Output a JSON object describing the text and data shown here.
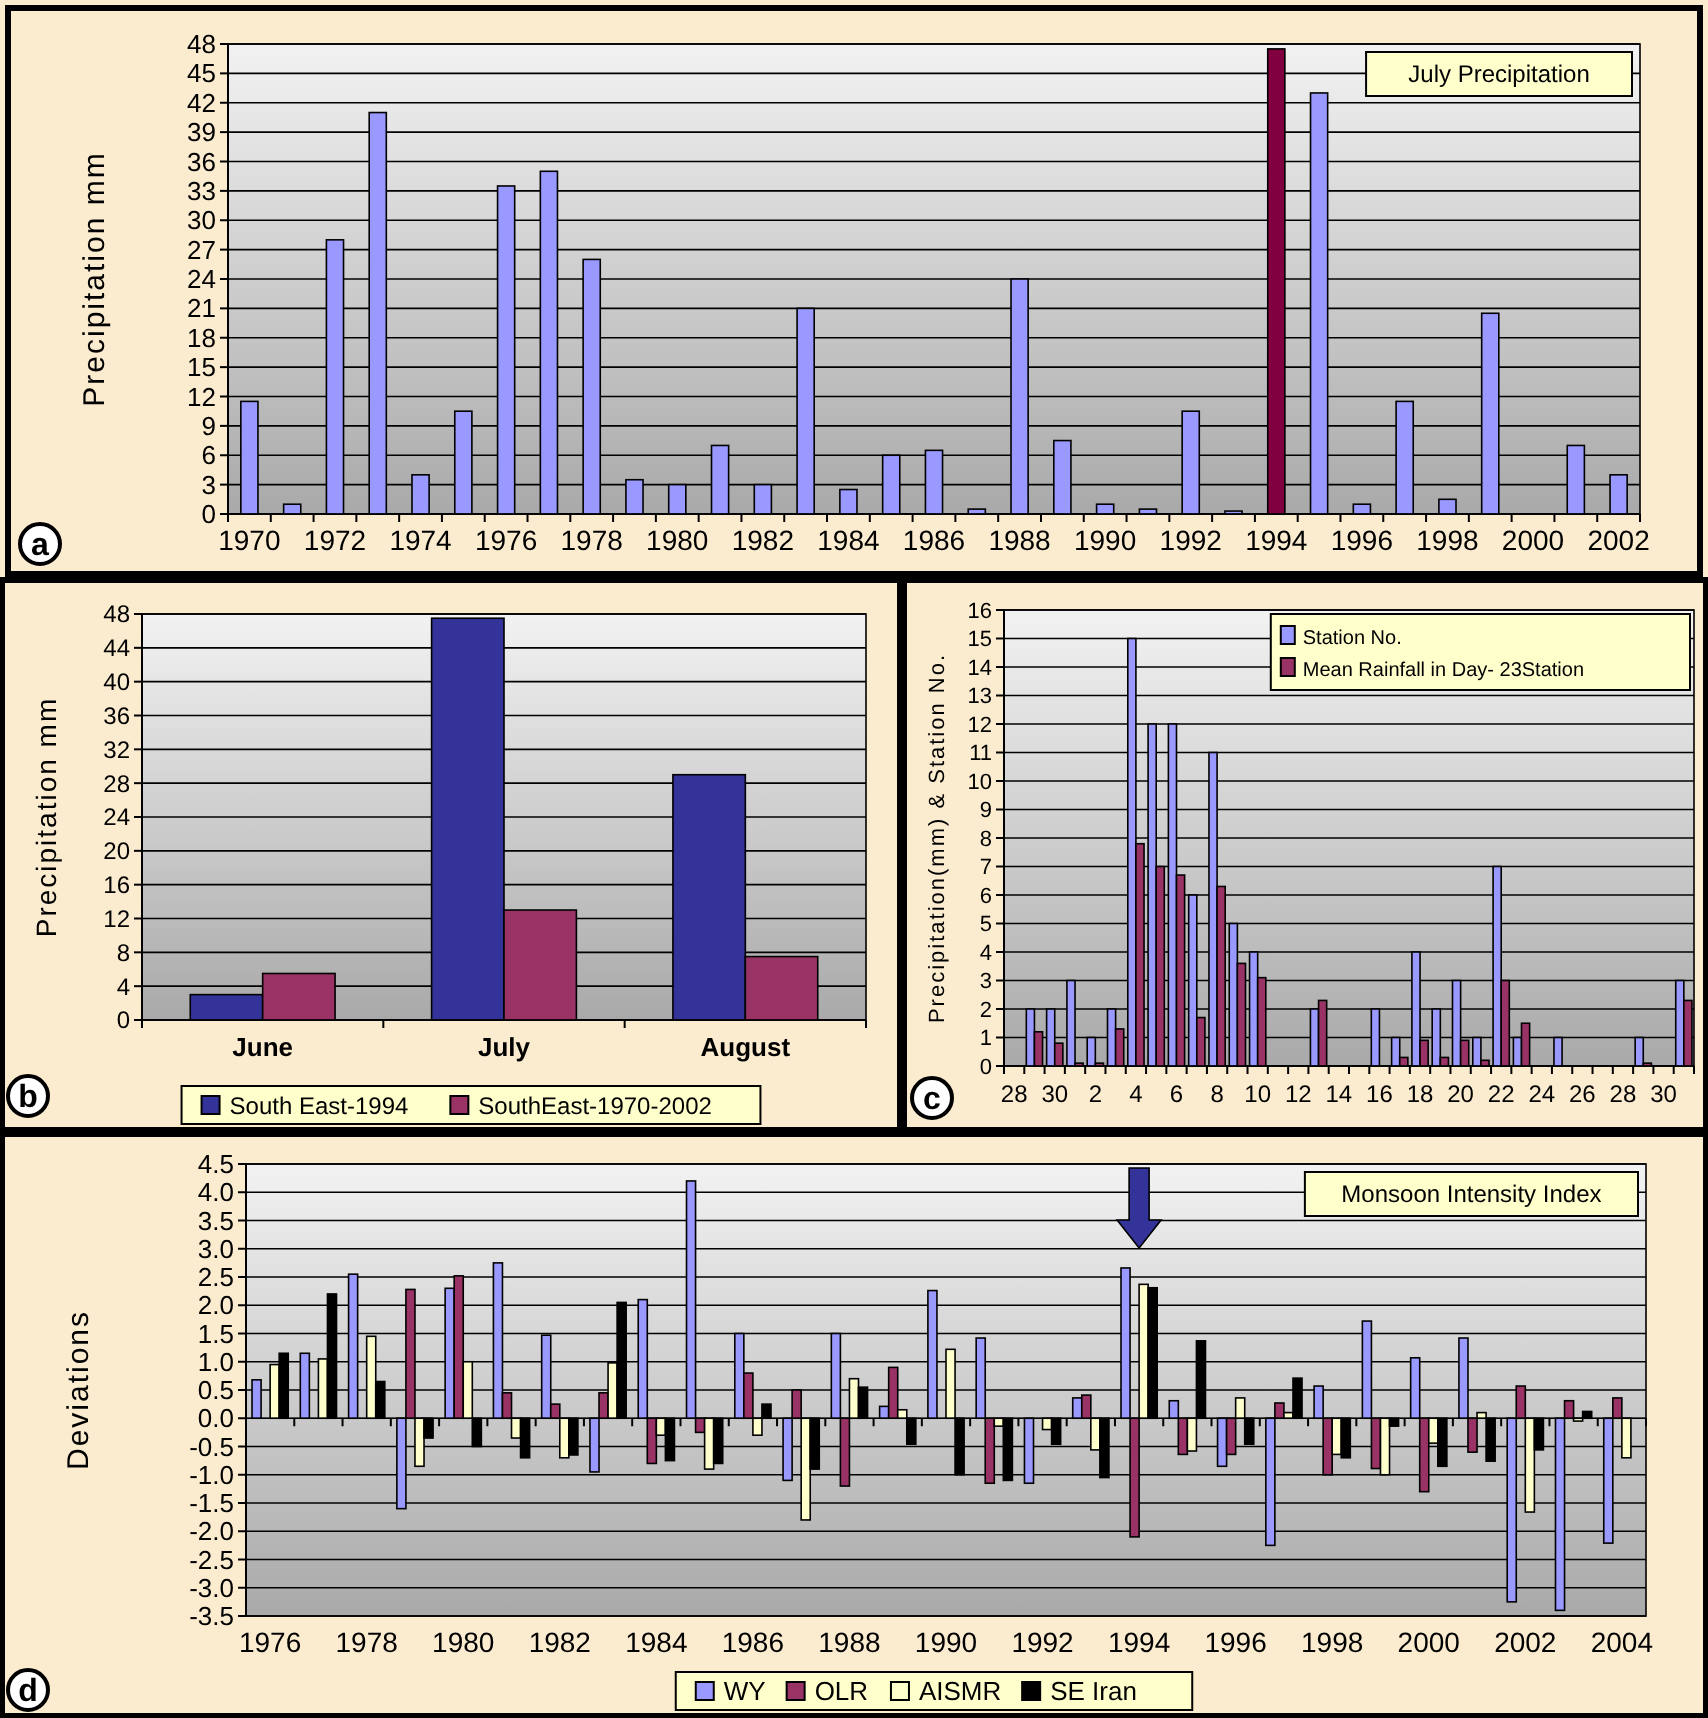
{
  "chart_data": [
    {
      "type": "bar",
      "title": "July Precipitation",
      "ylabel": "Precipitation mm",
      "annotations": [
        "a"
      ],
      "categories": [
        "1970",
        null,
        "1972",
        null,
        "1974",
        null,
        "1976",
        null,
        "1978",
        null,
        "1980",
        null,
        "1982",
        null,
        "1984",
        null,
        "1986",
        null,
        "1988",
        null,
        "1990",
        null,
        "1992",
        null,
        "1994",
        null,
        "1996",
        null,
        "1998",
        null,
        "2000",
        null,
        "2002"
      ],
      "values": [
        11.5,
        1,
        28,
        41,
        4,
        10.5,
        33.5,
        35,
        26,
        3.5,
        3,
        7,
        3,
        21,
        2.5,
        6,
        6.5,
        0.5,
        24,
        7.5,
        1,
        0.5,
        10.5,
        0.3,
        47.5,
        43,
        1,
        11.5,
        1.5,
        20.5,
        0,
        7,
        4
      ],
      "colors": [
        "#9999ff",
        "#9999ff",
        "#9999ff",
        "#9999ff",
        "#9999ff",
        "#9999ff",
        "#9999ff",
        "#9999ff",
        "#9999ff",
        "#9999ff",
        "#9999ff",
        "#9999ff",
        "#9999ff",
        "#9999ff",
        "#9999ff",
        "#9999ff",
        "#9999ff",
        "#9999ff",
        "#9999ff",
        "#9999ff",
        "#9999ff",
        "#9999ff",
        "#9999ff",
        "#9999ff",
        "#800040",
        "#9999ff",
        "#9999ff",
        "#9999ff",
        "#9999ff",
        "#9999ff",
        "#9999ff",
        "#9999ff",
        "#9999ff"
      ],
      "ylim": [
        0,
        48
      ],
      "yticks": [
        0,
        3,
        6,
        9,
        12,
        15,
        18,
        21,
        24,
        27,
        30,
        33,
        36,
        39,
        42,
        45,
        48
      ],
      "grid": "y"
    },
    {
      "type": "bar",
      "ylabel": "Precipitation mm",
      "annotations": [
        "b"
      ],
      "categories": [
        "June",
        "July",
        "August"
      ],
      "series": [
        {
          "name": "South East-1994",
          "color": "#333399",
          "values": [
            3,
            47.5,
            29
          ]
        },
        {
          "name": "SouthEast-1970-2002",
          "color": "#993366",
          "values": [
            5.5,
            13,
            7.5
          ]
        }
      ],
      "ylim": [
        0,
        48
      ],
      "yticks": [
        0,
        4,
        8,
        12,
        16,
        20,
        24,
        28,
        32,
        36,
        40,
        44,
        48
      ],
      "grid": "y",
      "legend": "bottom"
    },
    {
      "type": "bar",
      "ylabel": "Precipitation(mm) & Station No.",
      "annotations": [
        "c"
      ],
      "categories": [
        "28",
        null,
        "30",
        null,
        "2",
        null,
        "4",
        null,
        "6",
        null,
        "8",
        null,
        "10",
        null,
        "12",
        null,
        "14",
        null,
        "16",
        null,
        "18",
        null,
        "20",
        null,
        "22",
        null,
        "24",
        null,
        "26",
        null,
        "28",
        null,
        "30",
        null
      ],
      "series": [
        {
          "name": "Station No.",
          "color": "#9999ff",
          "values": [
            0,
            2,
            2,
            3,
            1,
            2,
            15,
            12,
            12,
            6,
            11,
            5,
            4,
            0,
            0,
            2,
            0,
            0,
            2,
            1,
            4,
            2,
            3,
            1,
            7,
            1,
            0,
            1,
            0,
            0,
            0,
            1,
            0,
            3
          ]
        },
        {
          "name": "Mean Rainfall in Day- 23Station",
          "color": "#993366",
          "values": [
            0,
            1.2,
            0.8,
            0.1,
            0.1,
            1.3,
            7.8,
            7,
            6.7,
            1.7,
            6.3,
            3.6,
            3.1,
            0,
            0,
            2.3,
            0,
            0,
            0,
            0.3,
            0.9,
            0.3,
            0.9,
            0.2,
            3,
            1.5,
            0,
            0,
            0,
            0,
            0,
            0.1,
            0,
            2.3
          ]
        }
      ],
      "ylim": [
        0,
        16
      ],
      "yticks": [
        0,
        1,
        2,
        3,
        4,
        5,
        6,
        7,
        8,
        9,
        10,
        11,
        12,
        13,
        14,
        15,
        16
      ],
      "grid": "y",
      "legend": "top right"
    },
    {
      "type": "bar",
      "title": "Monsoon Intensity Index",
      "ylabel": "Deviations",
      "annotations": [
        "d"
      ],
      "categories": [
        "1976",
        null,
        "1978",
        null,
        "1980",
        null,
        "1982",
        null,
        "1984",
        null,
        "1986",
        null,
        "1988",
        null,
        "1990",
        null,
        "1992",
        null,
        "1994",
        null,
        "1996",
        null,
        "1998",
        null,
        "2000",
        null,
        "2002",
        null,
        "2004"
      ],
      "series": [
        {
          "name": "WY",
          "color": "#9999ff",
          "values": [
            0.68,
            1.15,
            2.55,
            -1.6,
            2.3,
            2.75,
            1.47,
            -0.95,
            2.1,
            4.2,
            1.5,
            -1.1,
            1.5,
            0.21,
            2.26,
            1.42,
            -1.15,
            0.36,
            2.66,
            0.31,
            -0.85,
            -2.25,
            0.57,
            1.72,
            1.07,
            1.42,
            -3.25,
            -3.4,
            -2.21
          ]
        },
        {
          "name": "OLR",
          "color": "#993366",
          "values": [
            null,
            null,
            null,
            2.28,
            2.52,
            0.45,
            0.25,
            0.45,
            -0.8,
            -0.25,
            0.8,
            0.5,
            -1.2,
            0.9,
            0,
            -1.15,
            null,
            0.41,
            -2.1,
            -0.64,
            -0.64,
            0.27,
            -1.0,
            -0.89,
            -1.3,
            -0.6,
            0.57,
            0.31,
            0.36
          ]
        },
        {
          "name": "AISMR",
          "color": "#ffffcc",
          "values": [
            0.95,
            1.05,
            1.45,
            -0.85,
            1.0,
            -0.35,
            -0.7,
            0.98,
            -0.3,
            -0.9,
            -0.3,
            -1.8,
            0.7,
            0.15,
            1.22,
            -0.14,
            -0.2,
            -0.56,
            2.37,
            -0.58,
            0.36,
            0.1,
            -0.64,
            -1.0,
            -0.44,
            0.1,
            -1.66,
            -0.05,
            -0.7
          ]
        },
        {
          "name": "SE Iran",
          "color": "#000000",
          "values": [
            1.15,
            2.2,
            0.65,
            -0.35,
            -0.5,
            -0.7,
            -0.65,
            2.05,
            -0.75,
            -0.8,
            0.25,
            -0.9,
            0.55,
            -0.46,
            -1.0,
            -1.1,
            -0.46,
            -1.05,
            2.31,
            1.37,
            -0.46,
            0.71,
            -0.7,
            -0.14,
            -0.85,
            -0.76,
            -0.56,
            0.12,
            null
          ]
        }
      ],
      "ylim": [
        -3.5,
        4.5
      ],
      "yticks": [
        {
          "value": -3.5,
          "label": "-3.5"
        },
        {
          "value": -3,
          "label": "-3.0"
        },
        -2.5,
        {
          "value": -2,
          "label": "-2.0"
        },
        -1.5,
        {
          "value": -1,
          "label": "-1.0"
        },
        -0.5,
        {
          "value": 0,
          "label": "0.0"
        },
        0.5,
        {
          "value": 1,
          "label": "1.0"
        },
        1.5,
        {
          "value": 2,
          "label": "2.0"
        },
        2.5,
        {
          "value": 3,
          "label": "3.0"
        },
        3.5,
        {
          "value": 4,
          "label": "4.0"
        },
        4.5
      ],
      "grid": "y",
      "legend": "bottom"
    }
  ]
}
